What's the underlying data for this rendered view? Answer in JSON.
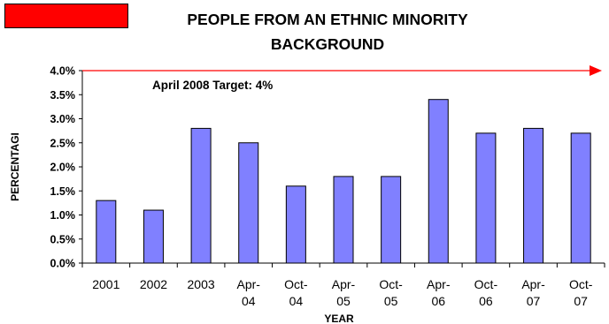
{
  "chart_data": {
    "type": "bar",
    "title_lines": [
      "PEOPLE FROM AN ETHNIC MINORITY",
      "BACKGROUND"
    ],
    "xlabel": "YEAR",
    "ylabel": "PERCENTAGI",
    "categories": [
      [
        "2001"
      ],
      [
        "2002"
      ],
      [
        "2003"
      ],
      [
        "Apr-",
        "04"
      ],
      [
        "Oct-",
        "04"
      ],
      [
        "Apr-",
        "05"
      ],
      [
        "Oct-",
        "05"
      ],
      [
        "Apr-",
        "06"
      ],
      [
        "Oct-",
        "06"
      ],
      [
        "Apr-",
        "07"
      ],
      [
        "Oct-",
        "07"
      ]
    ],
    "values": [
      1.3,
      1.1,
      2.8,
      2.5,
      1.6,
      1.8,
      1.8,
      3.4,
      2.7,
      2.8,
      2.7
    ],
    "ylim": [
      0,
      4
    ],
    "yticks": [
      "0.0%",
      "0.5%",
      "1.0%",
      "1.5%",
      "2.0%",
      "2.5%",
      "3.0%",
      "3.5%",
      "4.0%"
    ],
    "target": {
      "value": 4,
      "label": "April 2008 Target: 4%"
    },
    "colors": {
      "bar": "#8080ff",
      "target": "#ff0000",
      "legend_swatch": "#ff0000"
    },
    "grid": false
  }
}
